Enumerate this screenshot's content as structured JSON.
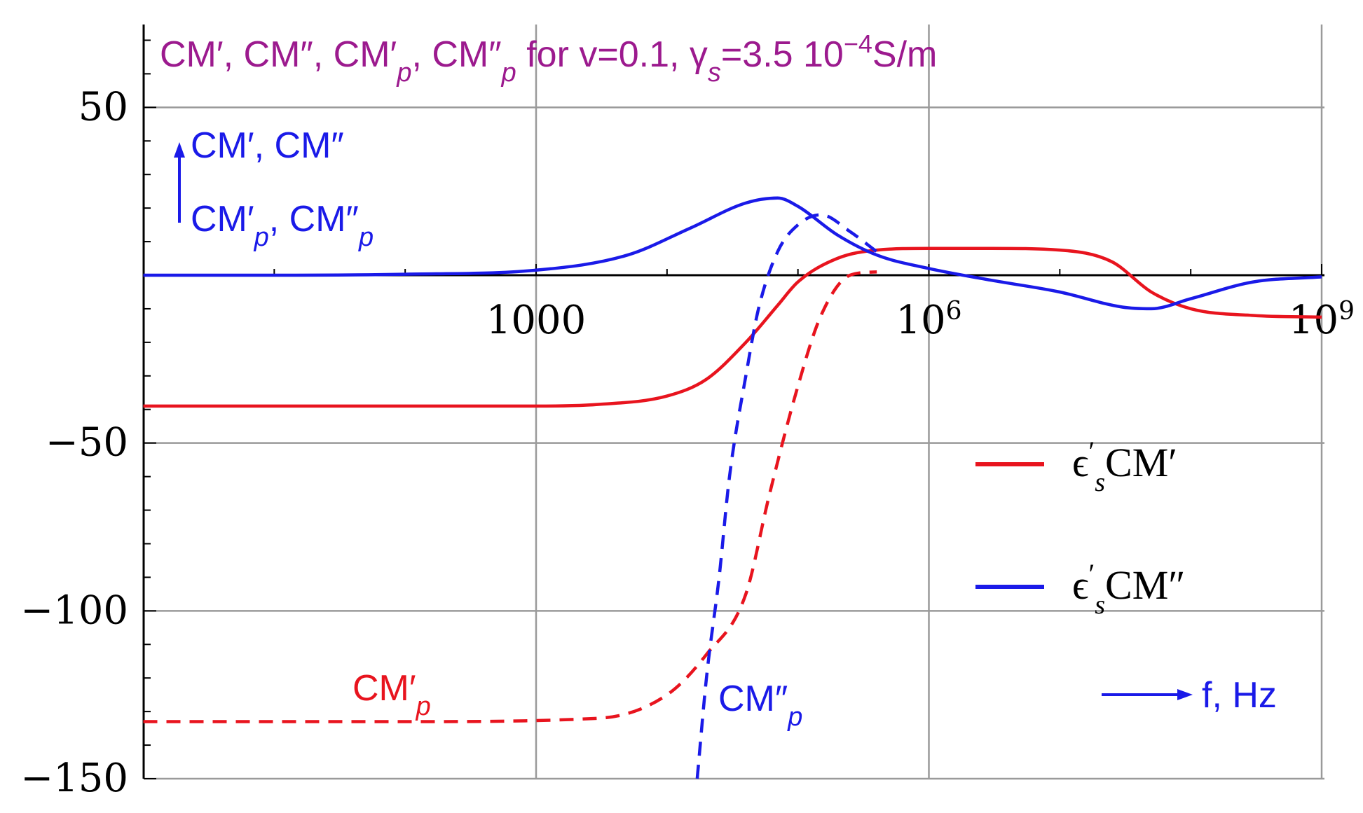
{
  "chart_data": {
    "type": "line",
    "title": "CM′, CM″, CM′p, CM″p for v=0.1, γs=3.5 10−4S/m",
    "title_parts": {
      "main": "CM′, CM″, CM′",
      "p1": "p",
      "mid": ", CM″",
      "p2": "p",
      "rest1": " for v=0.1, γ",
      "s": "s",
      "rest2": "=3.5 10",
      "exp": "−4",
      "unit": "S/m"
    },
    "xlabel": "f, Hz",
    "ylabel": "CM′, CM″ / CM′p, CM″p",
    "ylabel_lines": [
      "CM′, CM″",
      "CM′p, CM″p"
    ],
    "x_scale": "log",
    "xlim": [
      1,
      1000000000
    ],
    "ylim": [
      -150,
      70
    ],
    "grid": true,
    "legend_position": "right",
    "x_ticks": [
      {
        "value": 1000,
        "label": "1000",
        "base": "",
        "exp": ""
      },
      {
        "value": 1000000,
        "label": "",
        "base": "10",
        "exp": "6"
      },
      {
        "value": 1000000000,
        "label": "",
        "base": "10",
        "exp": "9"
      }
    ],
    "y_ticks": [
      {
        "value": 50,
        "label": "50"
      },
      {
        "value": -50,
        "label": "−50"
      },
      {
        "value": -100,
        "label": "−100"
      },
      {
        "value": -150,
        "label": "−150"
      }
    ],
    "series": [
      {
        "name": "ϵ′sCM′",
        "color": "#e8141e",
        "style": "solid",
        "legend_main": "ϵ",
        "legend_sub": "s",
        "legend_rest": "CM′",
        "x": [
          1,
          10,
          100,
          1000,
          3000,
          10000,
          20000,
          40000,
          70000,
          100000,
          200000,
          400000,
          1000000,
          3000000,
          10000000,
          25000000,
          50000000,
          100000000,
          300000000,
          1000000000
        ],
        "y": [
          -39,
          -39,
          -39,
          -39,
          -38.5,
          -36,
          -31,
          -20,
          -9,
          -2,
          5,
          7.5,
          8,
          8,
          7.5,
          4,
          -5,
          -10,
          -12,
          -12.5
        ]
      },
      {
        "name": "ϵ′sCM″",
        "color": "#1a1ae8",
        "style": "solid",
        "legend_main": "ϵ",
        "legend_sub": "s",
        "legend_rest": "CM″",
        "x": [
          1,
          10,
          100,
          1000,
          5000,
          15000,
          40000,
          70000,
          100000,
          200000,
          400000,
          1000000,
          3000000,
          10000000,
          30000000,
          50000000,
          100000000,
          300000000,
          1000000000
        ],
        "y": [
          0,
          0,
          0.3,
          1.5,
          6,
          14,
          21.5,
          23,
          20.5,
          12,
          6,
          2,
          -1.5,
          -5,
          -9.5,
          -10,
          -7,
          -2,
          -0.5
        ]
      },
      {
        "name": "CM′p",
        "color": "#e8141e",
        "style": "dashed",
        "label_main": "CM′",
        "label_sub": "p",
        "x": [
          1,
          100,
          3000,
          10000,
          20000,
          40000,
          60000,
          100000,
          150000,
          250000,
          400000
        ],
        "y": [
          -133,
          -133,
          -132,
          -125,
          -113,
          -95,
          -66,
          -33,
          -12,
          0,
          1
        ]
      },
      {
        "name": "CM″p",
        "color": "#1a1ae8",
        "style": "dashed",
        "label_main": "CM″",
        "label_sub": "p",
        "x": [
          17000,
          20000,
          25000,
          30000,
          40000,
          50000,
          70000,
          100000,
          150000,
          250000,
          400000
        ],
        "y": [
          -150,
          -120,
          -90,
          -60,
          -30,
          -10,
          7,
          15,
          18,
          13,
          7
        ]
      }
    ]
  }
}
